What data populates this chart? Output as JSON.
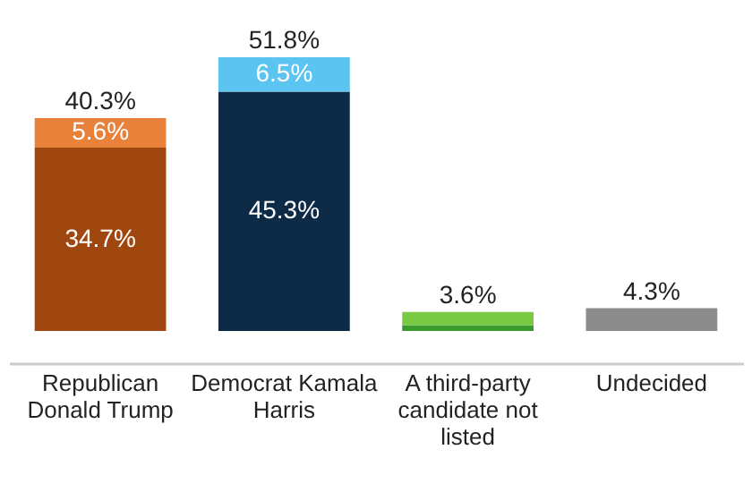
{
  "chart_data": {
    "type": "bar",
    "stacked": true,
    "data_labels": false,
    "categories": [
      "Republican Donald Trump",
      "Democrat Kamala Harris",
      "A third-party candidate not listed",
      "Undecided"
    ],
    "series": [
      {
        "colors": [
          "#a0460f",
          "#0d2a47",
          "#3a9a2e",
          "#8c8c8c"
        ],
        "values": [
          34.7,
          45.3,
          1.1,
          4.3
        ],
        "value_labels": [
          "34.7%",
          "45.3%",
          null,
          null
        ]
      },
      {
        "colors": [
          "#e8823a",
          "#5bc4f1",
          "#7ac943",
          null
        ],
        "values": [
          5.6,
          6.5,
          2.5,
          null
        ],
        "value_labels": [
          "5.6%",
          "6.5%",
          null,
          null
        ]
      }
    ],
    "totals": [
      "40.3%",
      "51.8%",
      "3.6%",
      "4.3%"
    ]
  }
}
